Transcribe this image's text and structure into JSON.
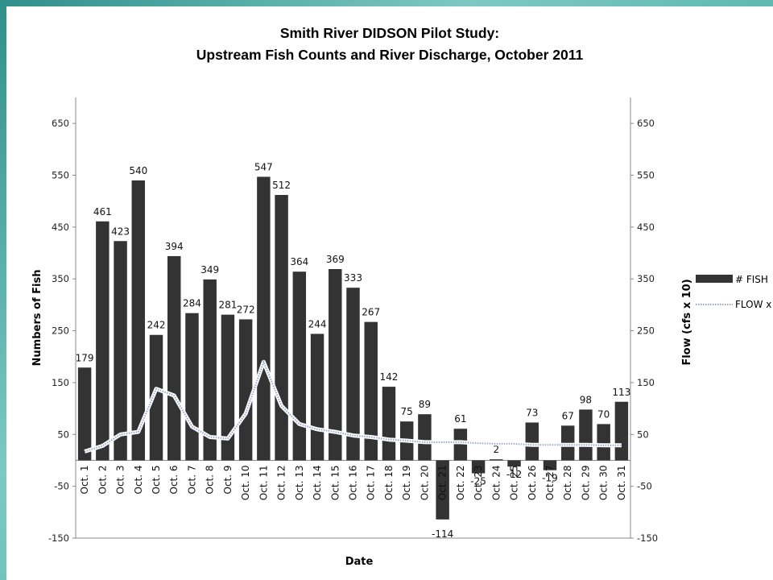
{
  "title_line1": "Smith River DIDSON Pilot Study:",
  "title_line2": "Upstream Fish Counts and River Discharge, October 2011",
  "chart_data": {
    "type": "bar",
    "xlabel": "Date",
    "ylabel_left": "Numbers of Fish",
    "ylabel_right": "Flow (cfs x 10)",
    "ylim": [
      -150,
      700
    ],
    "yticks": [
      -150,
      -50,
      50,
      150,
      250,
      350,
      450,
      550,
      650
    ],
    "grid": false,
    "legend_placement": "right",
    "categories": [
      "Oct. 1",
      "Oct. 2",
      "Oct. 3",
      "Oct. 4",
      "Oct. 5",
      "Oct. 6",
      "Oct. 7",
      "Oct. 8",
      "Oct. 9",
      "Oct. 10",
      "Oct. 11",
      "Oct. 12",
      "Oct. 13",
      "Oct. 14",
      "Oct. 15",
      "Oct. 16",
      "Oct. 17",
      "Oct. 18",
      "Oct. 19",
      "Oct. 20",
      "Oct. 21",
      "Oct. 22",
      "Oct. 23",
      "Oct. 24",
      "Oct. 25",
      "Oct. 26",
      "Oct. 27",
      "Oct. 28",
      "Oct. 29",
      "Oct. 30",
      "Oct. 31"
    ],
    "series": [
      {
        "name": "# FISH",
        "kind": "bar",
        "color": "#333333",
        "values": [
          179,
          461,
          423,
          540,
          242,
          394,
          284,
          349,
          281,
          272,
          547,
          512,
          364,
          244,
          369,
          333,
          267,
          142,
          75,
          89,
          -114,
          61,
          -25,
          2,
          -12,
          73,
          -19,
          67,
          98,
          70,
          113
        ]
      },
      {
        "name": "FLOW x",
        "kind": "line",
        "color": "#9aa6cc",
        "values": [
          17,
          28,
          50,
          55,
          138,
          125,
          65,
          45,
          42,
          90,
          190,
          105,
          70,
          60,
          55,
          48,
          45,
          40,
          38,
          35,
          35,
          35,
          33,
          32,
          32,
          30,
          30,
          30,
          30,
          29,
          29
        ]
      }
    ]
  }
}
